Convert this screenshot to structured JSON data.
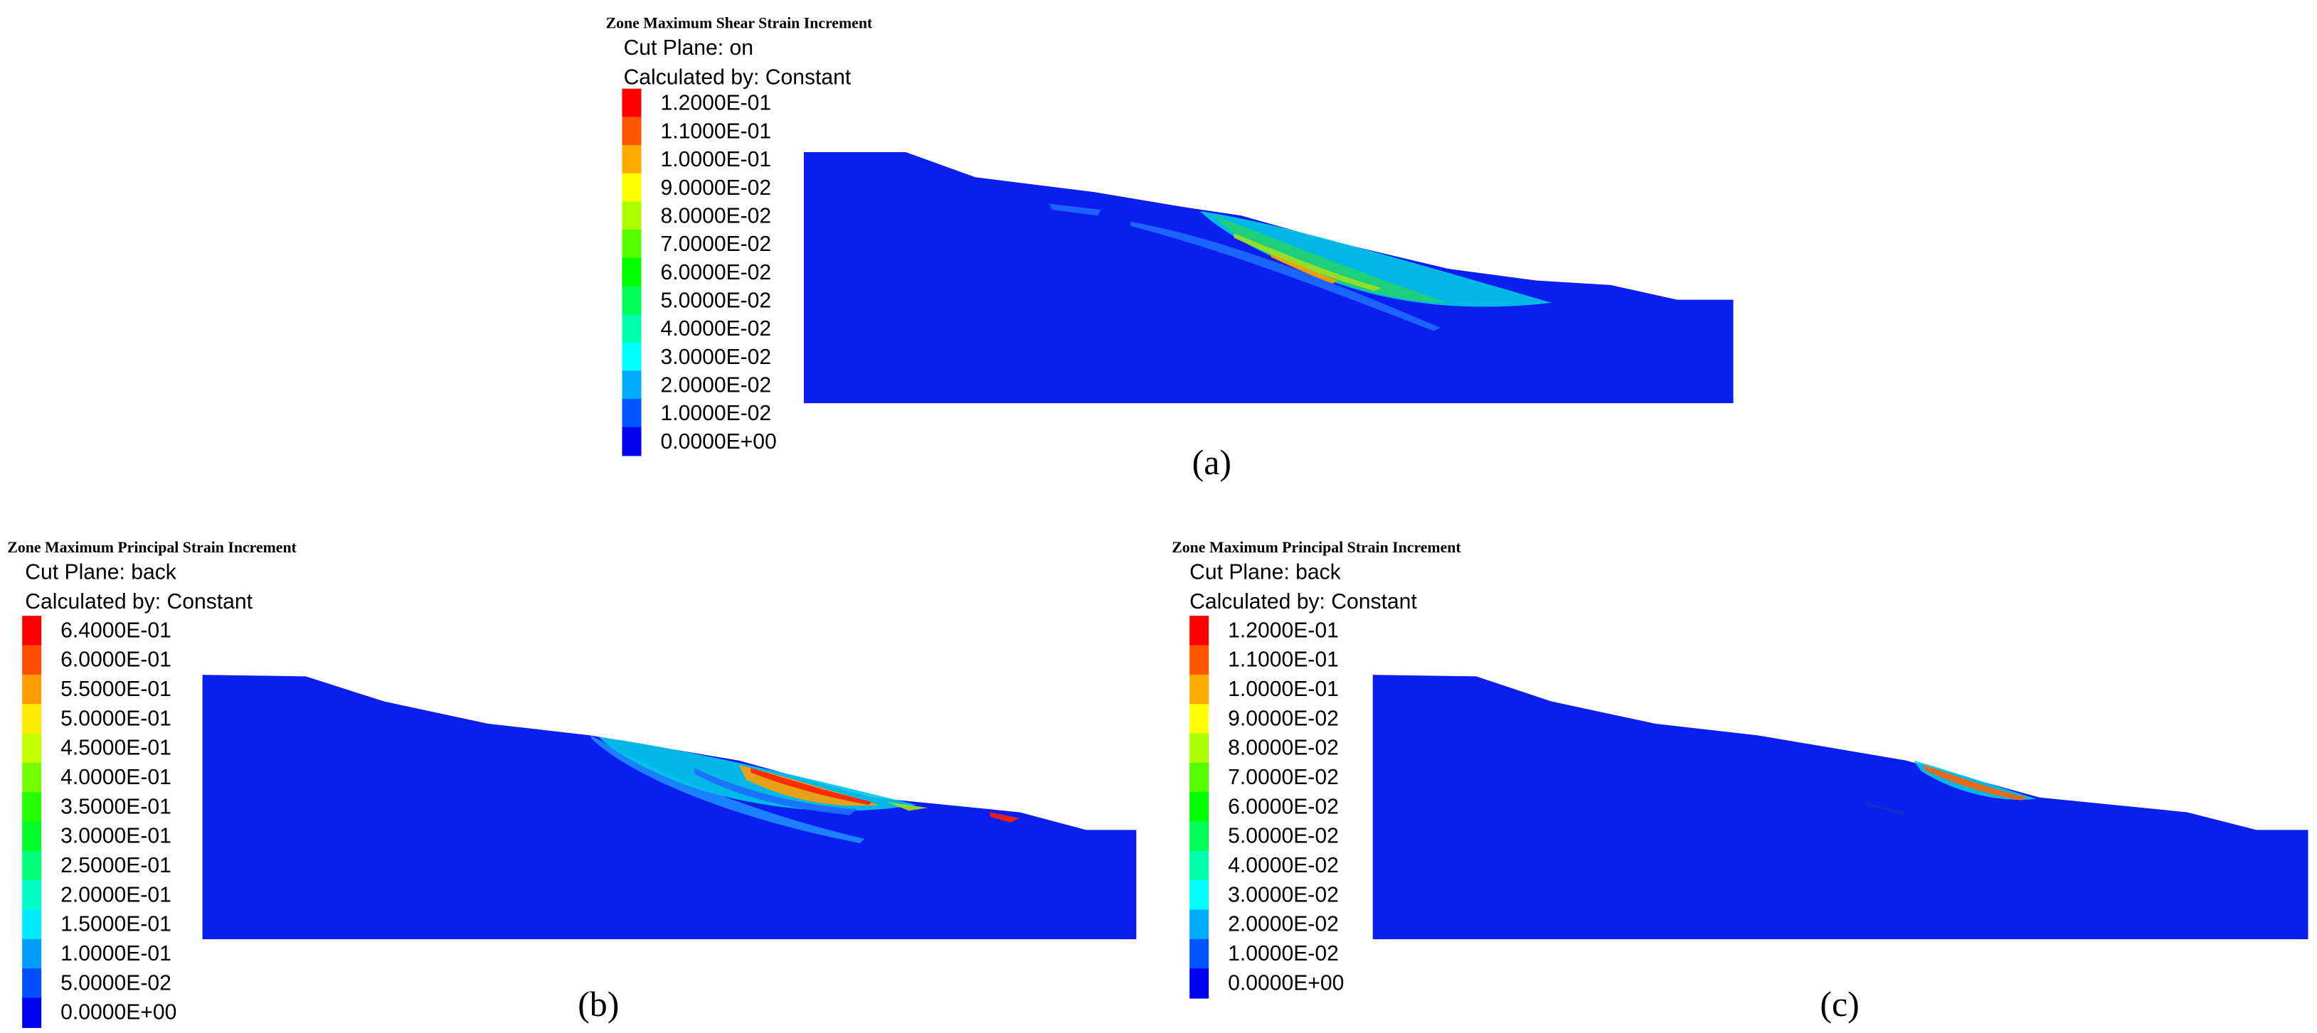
{
  "panels": [
    {
      "title": "Zone Maximum Shear Strain Increment",
      "cut_plane": "Cut Plane: on",
      "calculated_by": "Calculated by: Constant",
      "legend": [
        "1.2000E-01",
        "1.1000E-01",
        "1.0000E-01",
        "9.0000E-02",
        "8.0000E-02",
        "7.0000E-02",
        "6.0000E-02",
        "5.0000E-02",
        "4.0000E-02",
        "3.0000E-02",
        "2.0000E-02",
        "1.0000E-02",
        "0.0000E+00"
      ],
      "caption": "(a)"
    },
    {
      "title": "Zone Maximum Principal Strain Increment",
      "cut_plane": "Cut Plane: back",
      "calculated_by": "Calculated by: Constant",
      "legend": [
        "6.4000E-01",
        "6.0000E-01",
        "5.5000E-01",
        "5.0000E-01",
        "4.5000E-01",
        "4.0000E-01",
        "3.5000E-01",
        "3.0000E-01",
        "2.5000E-01",
        "2.0000E-01",
        "1.5000E-01",
        "1.0000E-01",
        "5.0000E-02",
        "0.0000E+00"
      ],
      "caption": "(b)"
    },
    {
      "title": "Zone Maximum Principal Strain Increment",
      "cut_plane": "Cut Plane: back",
      "calculated_by": "Calculated by: Constant",
      "legend": [
        "1.2000E-01",
        "1.1000E-01",
        "1.0000E-01",
        "9.0000E-02",
        "8.0000E-02",
        "7.0000E-02",
        "6.0000E-02",
        "5.0000E-02",
        "4.0000E-02",
        "3.0000E-02",
        "2.0000E-02",
        "1.0000E-02",
        "0.0000E+00"
      ],
      "caption": "(c)"
    }
  ]
}
